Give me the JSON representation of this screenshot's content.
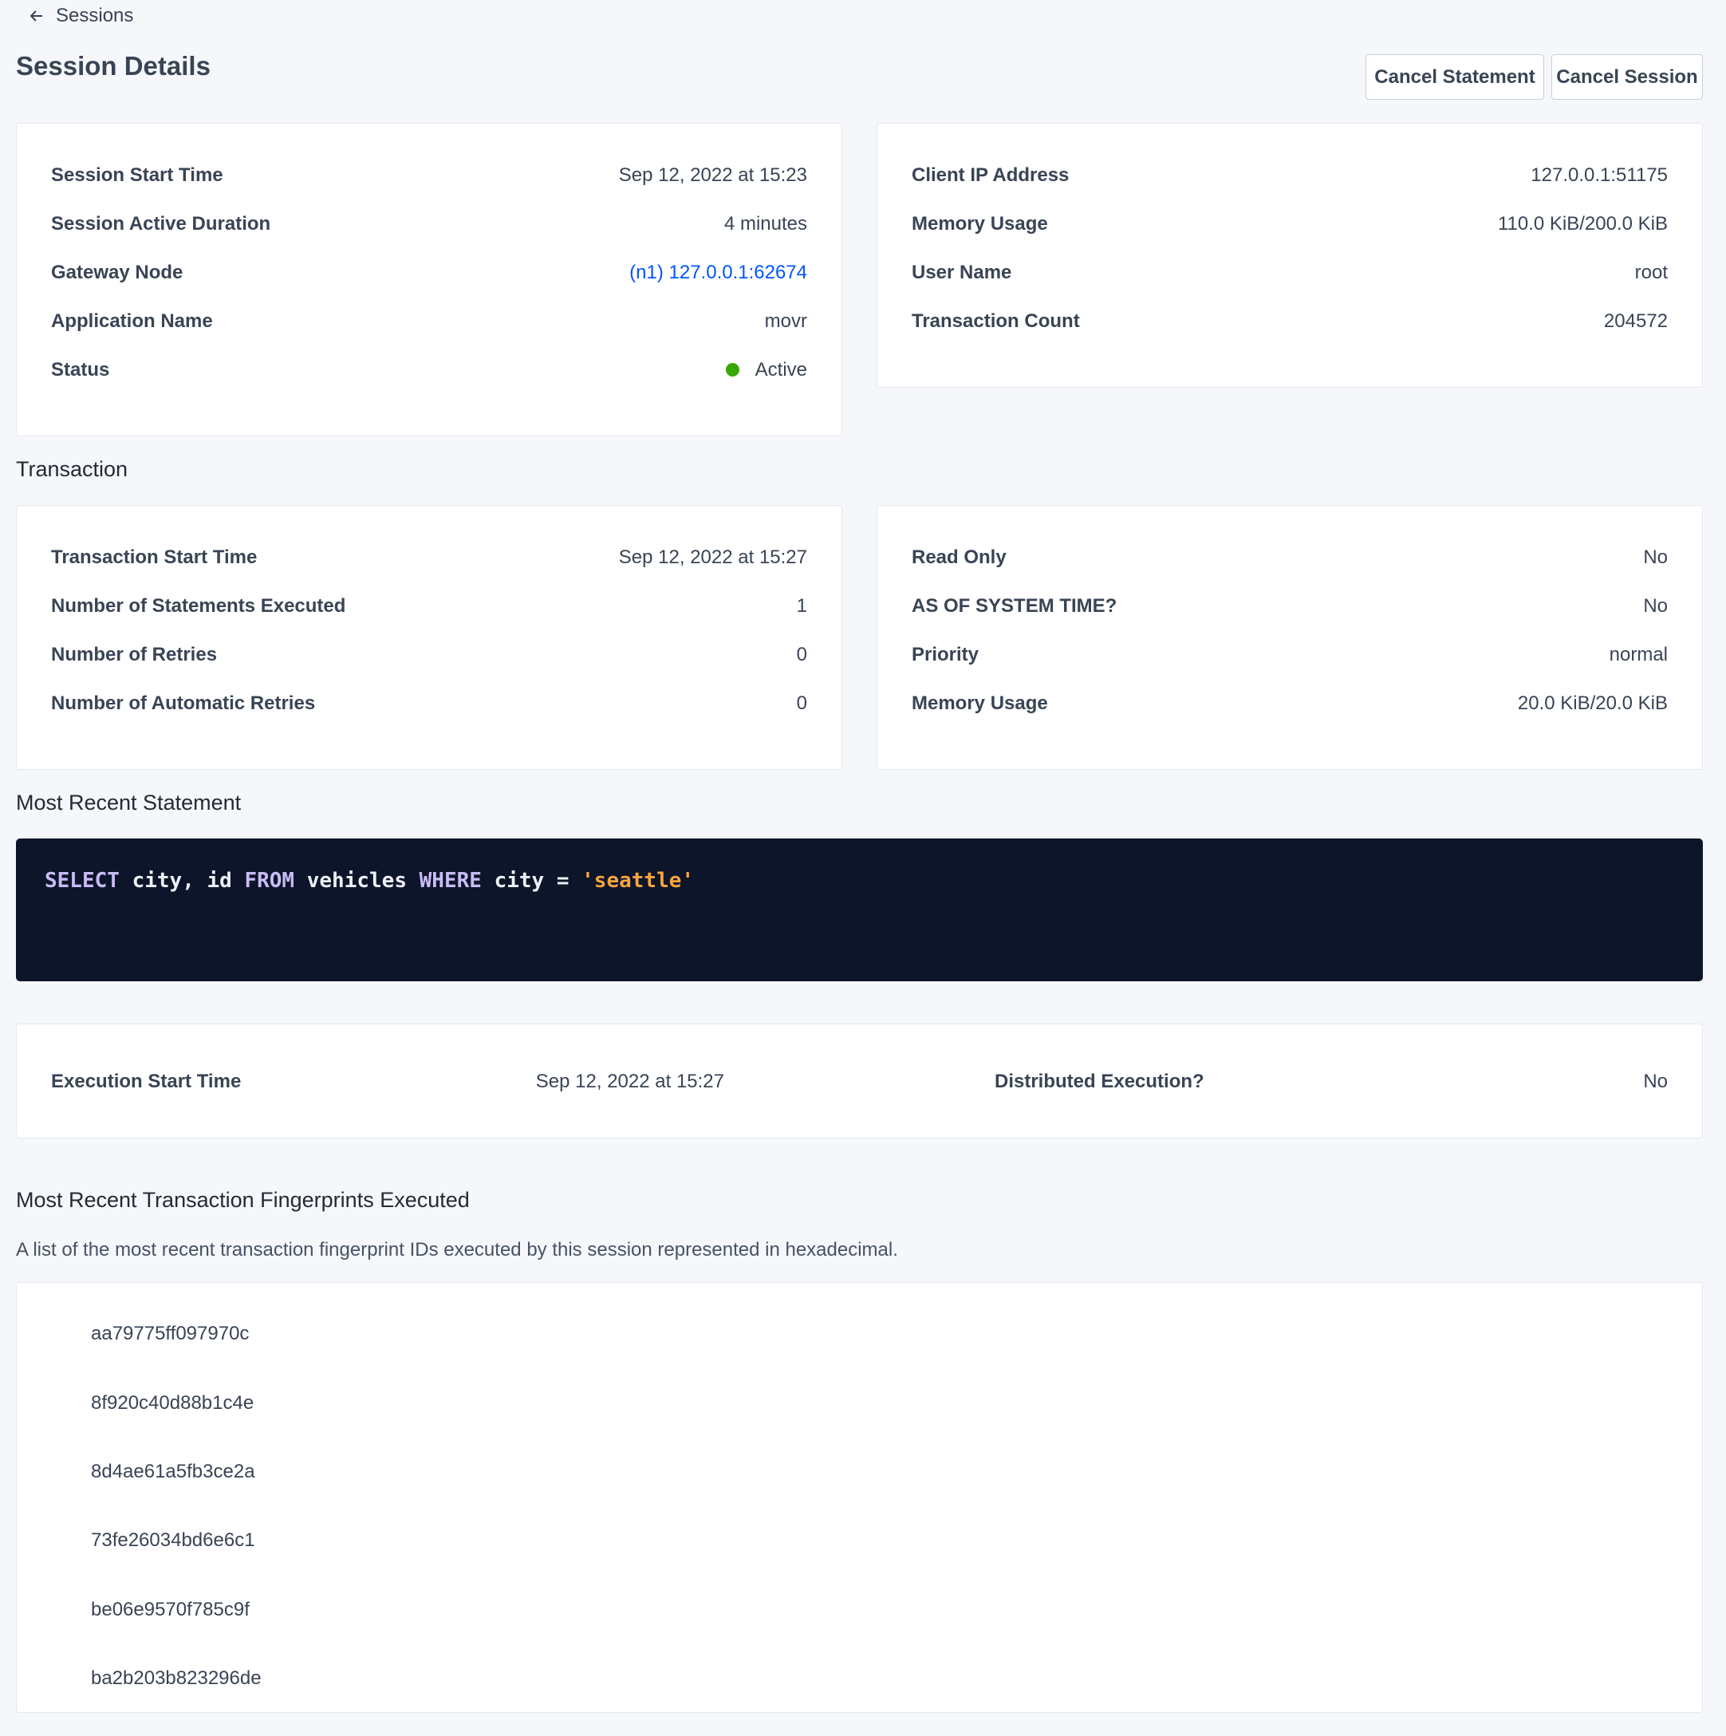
{
  "nav": {
    "back_label": "Sessions",
    "back_icon": "arrow-left-icon"
  },
  "header": {
    "title": "Session Details",
    "cancel_statement": "Cancel Statement",
    "cancel_session": "Cancel Session"
  },
  "session": {
    "left": [
      {
        "label": "Session Start Time",
        "value": "Sep 12, 2022 at 15:23"
      },
      {
        "label": "Session Active Duration",
        "value": "4 minutes"
      },
      {
        "label": "Gateway Node",
        "value": "(n1) 127.0.0.1:62674"
      },
      {
        "label": "Application Name",
        "value": "movr"
      },
      {
        "label": "Status",
        "value": "Active"
      }
    ],
    "right": [
      {
        "label": "Client IP Address",
        "value": "127.0.0.1:51175"
      },
      {
        "label": "Memory Usage",
        "value": "110.0 KiB/200.0 KiB"
      },
      {
        "label": "User Name",
        "value": "root"
      },
      {
        "label": "Transaction Count",
        "value": "204572"
      }
    ]
  },
  "transaction": {
    "heading": "Transaction",
    "left": [
      {
        "label": "Transaction Start Time",
        "value": "Sep 12, 2022 at 15:27"
      },
      {
        "label": "Number of Statements Executed",
        "value": "1"
      },
      {
        "label": "Number of Retries",
        "value": "0"
      },
      {
        "label": "Number of Automatic Retries",
        "value": "0"
      }
    ],
    "right": [
      {
        "label": "Read Only",
        "value": "No"
      },
      {
        "label": "AS OF SYSTEM TIME?",
        "value": "No"
      },
      {
        "label": "Priority",
        "value": "normal"
      },
      {
        "label": "Memory Usage",
        "value": "20.0 KiB/20.0 KiB"
      }
    ]
  },
  "statement": {
    "heading": "Most Recent Statement",
    "sql": {
      "kw1": "SELECT",
      "t1": " city, id ",
      "kw2": "FROM",
      "t2": " vehicles ",
      "kw3": "WHERE",
      "t3": " city = ",
      "str": "'seattle'"
    },
    "execution": [
      {
        "label": "Execution Start Time",
        "value": "Sep 12, 2022 at 15:27"
      },
      {
        "label": "Distributed Execution?",
        "value": "No"
      }
    ]
  },
  "fingerprints": {
    "heading": "Most Recent Transaction Fingerprints Executed",
    "description": "A list of the most recent transaction fingerprint IDs executed by this session represented in hexadecimal.",
    "items": [
      "aa79775ff097970c",
      "8f920c40d88b1c4e",
      "8d4ae61a5fb3ce2a",
      "73fe26034bd6e6c1",
      "be06e9570f785c9f",
      "ba2b203b823296de"
    ]
  },
  "colors": {
    "background": "#f5f7fa",
    "link": "#0055ff",
    "status_active": "#37a806",
    "code_bg": "#0c1529",
    "keyword": "#c9bcf5",
    "string": "#f7a540"
  }
}
